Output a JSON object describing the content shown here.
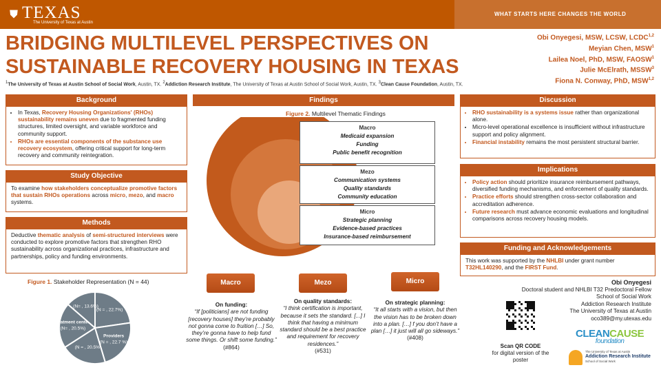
{
  "header": {
    "logo": "TEXAS",
    "logo_sub": "The University of Texas at Austin",
    "tagline": "WHAT STARTS HERE CHANGES THE WORLD"
  },
  "title": [
    "BRIDGING MULTILEVEL PERSPECTIVES ON",
    "SUSTAINABLE RECOVERY HOUSING IN TEXAS"
  ],
  "authors": [
    {
      "name": "Obi Onyegesi, MSW, LCSW, LCDC",
      "sup": "1,2"
    },
    {
      "name": "Meyian Chen, MSW",
      "sup": "1"
    },
    {
      "name": "Lailea Noel, PhD, MSW, FAOSW",
      "sup": "1"
    },
    {
      "name": "Julie McElrath, MSSW",
      "sup": "3"
    },
    {
      "name": "Fiona N. Conway, PhD, MSW",
      "sup": "1,2"
    }
  ],
  "affiliations": [
    "1",
    "The University of Texas at Austin School of Social Work",
    ", Austin, TX. ",
    "2",
    "Addiction Research Institute",
    ", The University of Texas at Austin School of Social Work, Austin, TX. ",
    "3",
    "Clean Cause Foundation",
    ", Austin, TX."
  ],
  "background": {
    "heading": "Background",
    "items": [
      [
        "In Texas, ",
        "Recovery Housing Organizations' (RHOs) sustainability remains uneven",
        " due to fragmented funding structures, limited oversight, and variable workforce and community support."
      ],
      [
        "RHOs are essential components of the substance use recovery ecosystem",
        ", offering critical support for long-term recovery and community reintegration."
      ]
    ]
  },
  "objective": {
    "heading": "Study Objective",
    "text": [
      "To examine ",
      "how stakeholders conceptualize promotive factors that sustain RHOs operations",
      " across ",
      "micro",
      ", ",
      "mezo",
      ", and ",
      "macro",
      " systems."
    ]
  },
  "methods": {
    "heading": "Methods",
    "text": [
      "Deductive ",
      "thematic analysis",
      " of ",
      "semi-structured interviews",
      " were conducted to explore promotive factors that strengthen RHO sustainability across organizational practices, infrastructure and partnerships, policy and funding environments."
    ]
  },
  "figure1": {
    "caption": [
      "Figure 1.",
      "Stakeholder Representation (N = 44)"
    ],
    "type": "pie",
    "color": "#6e7c87",
    "categories": [
      null,
      "Providers",
      null,
      "Treatment centers",
      null
    ],
    "values": [
      22.7,
      22.7,
      20.5,
      20.5,
      13.6
    ],
    "value_labels": [
      "(N = , 22.7%)",
      "(N = , 22.7 %)",
      "(N = , 20.5%",
      "(N= , 20.5%)",
      "(N= , 13.6%)"
    ]
  },
  "findings": {
    "heading": "Findings",
    "caption": [
      "Figure 2.",
      "Multilevel Thematic Findings"
    ],
    "levels": [
      {
        "name": "Macro",
        "items": [
          "Medicaid expansion",
          "Funding",
          "Public benefit recognition"
        ]
      },
      {
        "name": "Mezo",
        "items": [
          "Communication systems",
          "Quality standards",
          "Community education"
        ]
      },
      {
        "name": "Micro",
        "items": [
          "Strategic planning",
          "Evidence-based practices",
          "Insurance-based reimbursement"
        ]
      }
    ],
    "quotes": [
      {
        "level": "Macro",
        "heading": "On funding:",
        "text": "“If [politicians] are not funding [recovery houses] they’re probably not gonna come to fruition  […] So, they’re gonna have to help fund some things. Or shift some funding.”",
        "ref": "(#864)"
      },
      {
        "level": "Mezo",
        "heading": "On quality standards:",
        "text": "“I think certification is important, because it sets the standard. [...] I think that having a minimum standard should be a best practice and requirement for recovery residences.”",
        "ref": "(#531)"
      },
      {
        "level": "Micro",
        "heading": "On strategic planning:",
        "text": "“It all starts with a vision, but then the vision has to be broken down into a plan. […] f you don’t have a plan […] it just will all go sideways.”",
        "ref": "(#408)"
      }
    ]
  },
  "discussion": {
    "heading": "Discussion",
    "items": [
      [
        "RHO sustainability is a systems issue",
        " rather than organizational alone."
      ],
      [
        "Micro-level operational excellence is insufficient without infrastructure support and policy alignment."
      ],
      [
        "Financial instability",
        " remains the most persistent structural barrier."
      ]
    ]
  },
  "implications": {
    "heading": "Implications",
    "items": [
      [
        "Policy action",
        " should prioritize insurance reimbursement pathways, diversified funding mechanisms, and enforcement of quality standards."
      ],
      [
        "Practice efforts",
        " should strengthen cross-sector collaboration and accreditation adherence."
      ],
      [
        "Future research",
        " must advance economic evaluations and longitudinal comparisons across recovery housing models."
      ]
    ]
  },
  "funding": {
    "heading": "Funding and Acknowledgements",
    "text": [
      "This work was supported by the ",
      "NHLBI",
      " under grant number ",
      "T32HL140290",
      ", and the ",
      "FIRST Fund",
      "."
    ]
  },
  "contact": {
    "name": "Obi Onyegesi",
    "lines": [
      "Doctoral student and NHLBI T32 Predoctoral Fellow",
      "School of Social Work",
      "Addiction Research Institute",
      "The University of Texas at Austin",
      "oco389@my.utexas.edu"
    ]
  },
  "qr": {
    "title": "Scan QR CODE",
    "text": "for digital version of the poster"
  },
  "logos": {
    "clean": "CLEAN",
    "cause": "CAUSE",
    "foundation": "foundation",
    "ari_univ": "The University of Texas at Austin",
    "ari_name": "Addiction Research Institute",
    "ari_school": "School of Social Work"
  }
}
